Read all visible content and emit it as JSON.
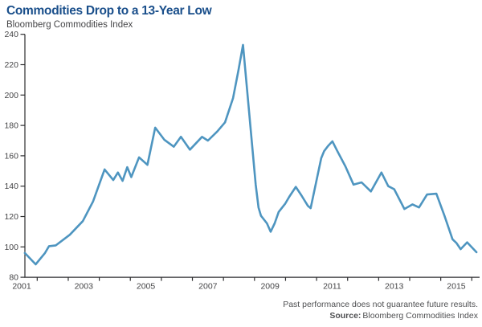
{
  "header": {
    "title": "Commodities Drop to a 13-Year Low",
    "subtitle": "Bloomberg Commodities Index"
  },
  "footer": {
    "disclaimer": "Past performance does not guarantee future results.",
    "source_label": "Source:",
    "source_text": "Bloomberg Commodities Index"
  },
  "colors": {
    "title": "#1a4f8b",
    "subtitle": "#454547",
    "line": "#4e95c0",
    "axis": "#2e2e30",
    "tick_label": "#454547",
    "footer_text": "#4f5052"
  },
  "chart_data": {
    "type": "line",
    "title": "Commodities Drop to a 13-Year Low",
    "subtitle": "Bloomberg Commodities Index",
    "xlabel": "",
    "ylabel": "",
    "x_range": [
      2001,
      2015.75
    ],
    "ylim": [
      80,
      240
    ],
    "grid": false,
    "legend": "none",
    "y_ticks": [
      80,
      100,
      120,
      140,
      160,
      180,
      200,
      220,
      240
    ],
    "x_tick_years": [
      2001.5,
      2002.5,
      2003.5,
      2004.5,
      2005.5,
      2006.5,
      2007.5,
      2008.5,
      2009.5,
      2010.5,
      2011.5,
      2012.5,
      2013.5,
      2014.5,
      2015.5
    ],
    "x_label_years": [
      2001,
      2003,
      2005,
      2007,
      2009,
      2011,
      2013,
      2015
    ],
    "x_tick_labels": [
      "2001",
      "2003",
      "2005",
      "2007",
      "2009",
      "2011",
      "2013",
      "2015"
    ],
    "series": [
      {
        "name": "Bloomberg Commodities Index",
        "x": [
          2001.1,
          2001.45,
          2001.75,
          2001.88,
          2002.1,
          2002.55,
          2002.97,
          2003.3,
          2003.67,
          2003.95,
          2004.1,
          2004.25,
          2004.4,
          2004.53,
          2004.78,
          2005.05,
          2005.3,
          2005.6,
          2005.9,
          2006.13,
          2006.42,
          2006.81,
          2007.0,
          2007.3,
          2007.55,
          2007.81,
          2007.98,
          2008.13,
          2008.54,
          2008.63,
          2008.71,
          2008.9,
          2009.02,
          2009.15,
          2009.28,
          2009.49,
          2009.62,
          2009.83,
          2010.01,
          2010.22,
          2010.31,
          2010.48,
          2010.65,
          2010.74,
          2010.87,
          2011.01,
          2011.17,
          2011.43,
          2011.69,
          2011.95,
          2012.25,
          2012.59,
          2012.81,
          2013.0,
          2013.33,
          2013.59,
          2013.8,
          2014.06,
          2014.36,
          2014.62,
          2014.88,
          2015.01,
          2015.14,
          2015.35,
          2015.65
        ],
        "y": [
          96,
          88.5,
          96,
          100.5,
          101,
          108,
          117,
          130,
          151,
          144,
          149,
          143.5,
          152.5,
          146,
          159,
          154,
          178.5,
          170.5,
          166,
          172.5,
          164,
          172.5,
          170,
          176,
          182,
          198,
          216,
          233,
          141,
          126,
          120.5,
          115.5,
          110,
          115.5,
          123,
          128.5,
          133,
          139.5,
          134,
          127,
          125.5,
          142,
          158.5,
          163,
          166.5,
          169.5,
          163,
          153,
          141,
          142.5,
          136.5,
          149,
          140,
          138,
          125,
          128,
          126,
          134.5,
          135,
          120.5,
          105,
          102.5,
          98.5,
          103,
          96.5
        ]
      }
    ]
  }
}
